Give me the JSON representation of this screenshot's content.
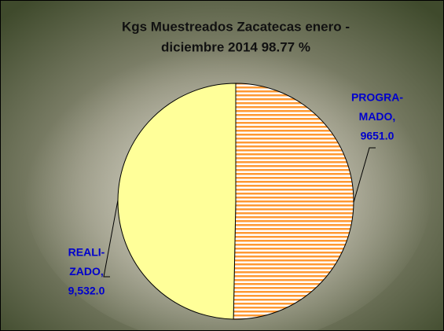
{
  "chart_data": {
    "type": "pie",
    "title": [
      "Kgs Muestreados Zacatecas enero -",
      "diciembre 2014  98.77 %"
    ],
    "categories": [
      [
        "PROGRA-",
        "MADO,"
      ],
      [
        "REALI-",
        "ZADO,"
      ]
    ],
    "values": [
      9651.0,
      9532.0
    ],
    "value_labels": [
      "9651.0",
      "9,532.0"
    ],
    "colors": [
      "#ff9933",
      "#ffff99"
    ],
    "hatch": [
      true,
      false
    ],
    "label_color": "#0000cc"
  }
}
